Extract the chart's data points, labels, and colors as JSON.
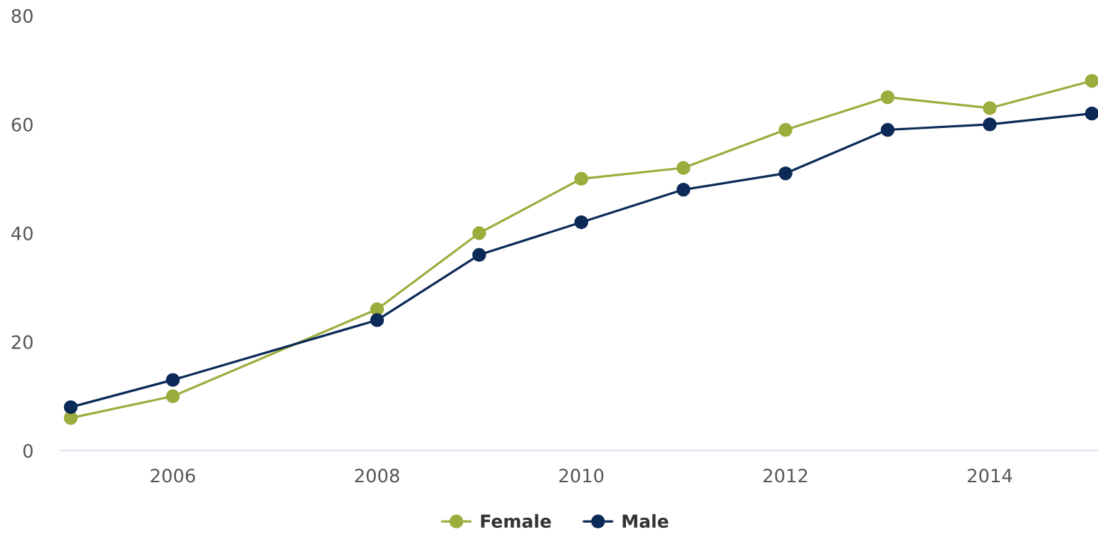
{
  "chart_data": {
    "type": "line",
    "x": [
      2005,
      2006,
      2008,
      2009,
      2010,
      2011,
      2012,
      2013,
      2014,
      2015
    ],
    "series": [
      {
        "name": "Female",
        "color": "#9cad3e",
        "values": [
          6,
          10,
          26,
          40,
          50,
          52,
          59,
          65,
          63,
          68
        ]
      },
      {
        "name": "Male",
        "color": "#0b2a57",
        "values": [
          8,
          13,
          24,
          36,
          42,
          48,
          51,
          59,
          60,
          62
        ]
      }
    ],
    "xlim": [
      2004.9,
      2015.06
    ],
    "xticks": [
      2006,
      2008,
      2010,
      2012,
      2014
    ],
    "ylim": [
      0,
      80
    ],
    "yticks": [
      0,
      20,
      40,
      60,
      80
    ],
    "legend": "bottom",
    "marker": "circle",
    "line_style": "solid"
  }
}
